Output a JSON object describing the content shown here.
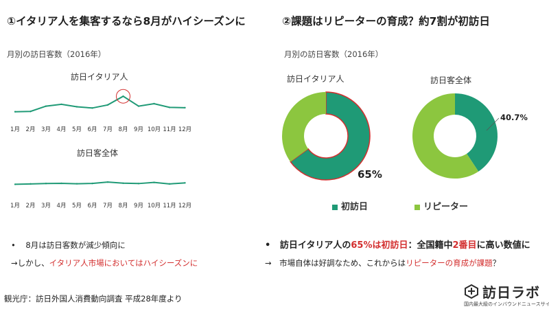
{
  "left": {
    "heading": "①イタリア人を集客するなら8月がハイシーズンに",
    "subtitle": "月別の訪日客数（2016年）",
    "bullet1": "8月は訪日客数が減少傾向に",
    "bullet2_prefix": "→しかし、",
    "bullet2_red": "イタリア人市場においてはハイシーズンに"
  },
  "right": {
    "heading": "②課題はリピーターの育成？約7割が初訪日",
    "subtitle": "月別の訪日客数（2016年）",
    "bullet1_a": "訪日イタリア人の",
    "bullet1_red": "65%は初訪日",
    "bullet1_b": "：全国籍中",
    "bullet1_red2": "2番目",
    "bullet1_c": "に高い数値に",
    "bullet2_prefix": "→　市場自体は好調なため、これからは",
    "bullet2_red": "リピーターの育成が課題",
    "bullet2_suffix": "？",
    "legend": [
      {
        "label": "初訪日",
        "color": "#1f9a76"
      },
      {
        "label": "リピーター",
        "color": "#8cc63f"
      }
    ]
  },
  "source": "観光庁：訪日外国人消費動向調査 平成28年度より",
  "logo": {
    "main": "訪日ラボ",
    "sub": "国内最大級のインバウンドニュースサイト"
  },
  "chart_data": [
    {
      "type": "line",
      "title": "訪日イタリア人",
      "categories": [
        "1月",
        "2月",
        "3月",
        "4月",
        "5月",
        "6月",
        "7月",
        "8月",
        "9月",
        "10月",
        "11月",
        "12月"
      ],
      "series": [
        {
          "values": [
            17,
            17.5,
            26,
            29,
            25,
            23,
            28,
            42,
            26,
            30,
            24,
            23.5
          ]
        }
      ],
      "ylim": [
        0,
        60
      ],
      "highlight_index": 7,
      "color": "#1f9a76",
      "highlight_color": "#d32f2f"
    },
    {
      "type": "line",
      "title": "訪日客全体",
      "categories": [
        "1月",
        "2月",
        "3月",
        "4月",
        "5月",
        "6月",
        "7月",
        "8月",
        "9月",
        "10月",
        "11月",
        "12月"
      ],
      "series": [
        {
          "values": [
            22.9,
            23.5,
            24.2,
            24.5,
            23.8,
            24.3,
            26.5,
            24.7,
            24.1,
            25.9,
            23.5,
            25.2
          ]
        }
      ],
      "ylim": [
        0,
        60
      ],
      "color": "#1f9a76"
    },
    {
      "type": "pie",
      "title": "訪日イタリア人",
      "labels": [
        "初訪日",
        "リピーター"
      ],
      "values": [
        65,
        35
      ],
      "colors": [
        "#1f9a76",
        "#8cc63f"
      ],
      "data_labels": [
        "65%",
        ""
      ],
      "outline_color": "#d32f2f"
    },
    {
      "type": "pie",
      "title": "訪日客全体",
      "labels": [
        "初訪日",
        "リピーター"
      ],
      "values": [
        40.7,
        59.3
      ],
      "colors": [
        "#1f9a76",
        "#8cc63f"
      ],
      "data_labels": [
        "40.7%",
        ""
      ]
    }
  ]
}
